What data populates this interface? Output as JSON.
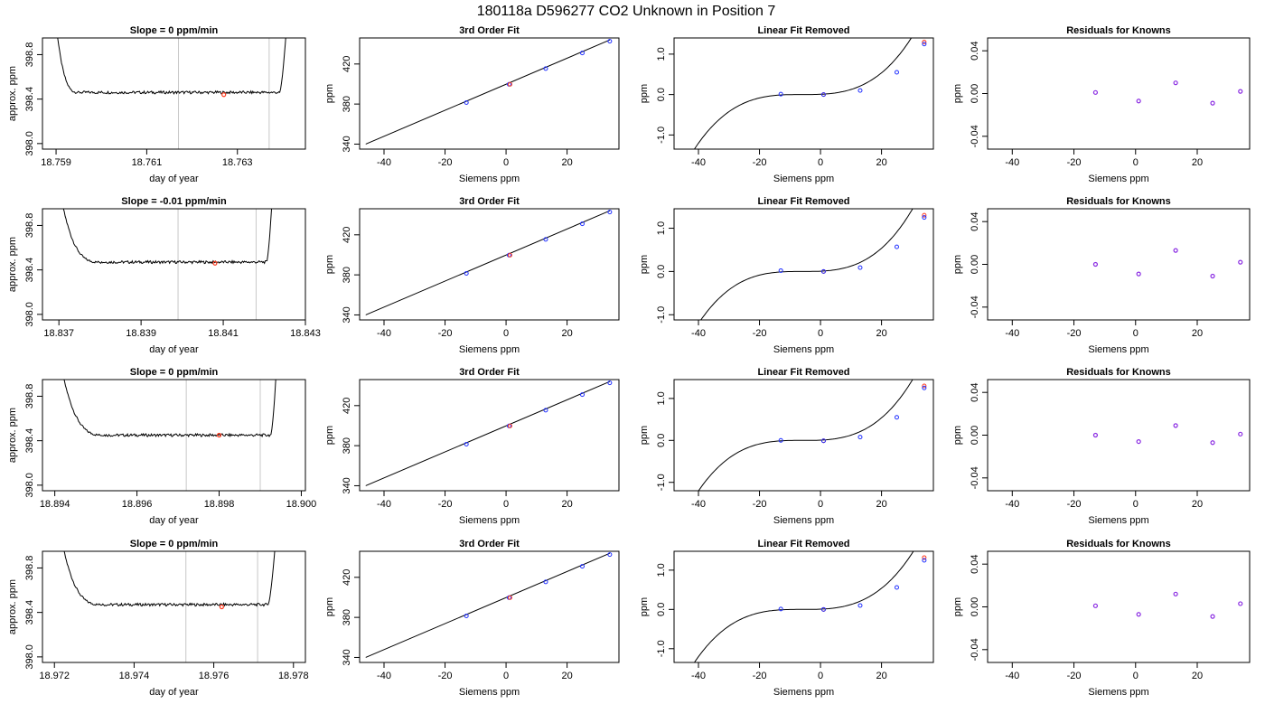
{
  "figure": {
    "title": "180118a      D596277    CO2 Unknown in Position  7"
  },
  "colors": {
    "trace": "#000000",
    "marker_red": "#ff3b1f",
    "marker_blue": "#1f2fff",
    "marker_purple": "#8a2be2",
    "vline": "#c8c8c8"
  },
  "chart_data": [
    {
      "type": "line",
      "panel": "timeseries",
      "row": 0,
      "title": "Slope =  0  ppm/min",
      "xlabel": "day of year",
      "ylabel": "approx. ppm",
      "xlim": [
        18.7587,
        18.7645
      ],
      "ylim": [
        397.95,
        398.95
      ],
      "xticks": [
        "18.759",
        "18.761",
        "18.763"
      ],
      "xtick_values": [
        18.759,
        18.761,
        18.763
      ],
      "yticks": [
        "398.0",
        "398.4",
        "398.8"
      ],
      "ytick_values": [
        398.0,
        398.4,
        398.8
      ],
      "vlines": [
        18.7617,
        18.7637
      ],
      "marker": {
        "x": 18.7627,
        "y": 398.44
      },
      "baseline": 398.46,
      "rise_start": 18.7595,
      "rise_end": 18.7637,
      "end": 18.7642
    },
    {
      "type": "line",
      "panel": "timeseries",
      "row": 1,
      "title": "Slope =  -0.01  ppm/min",
      "xlabel": "day of year",
      "ylabel": "approx. ppm",
      "xlim": [
        18.8366,
        18.843
      ],
      "ylim": [
        397.95,
        398.95
      ],
      "xticks": [
        "18.837",
        "18.839",
        "18.841",
        "18.843"
      ],
      "xtick_values": [
        18.837,
        18.839,
        18.841,
        18.843
      ],
      "yticks": [
        "398.0",
        "398.4",
        "398.8"
      ],
      "ytick_values": [
        398.0,
        398.4,
        398.8
      ],
      "vlines": [
        18.8399,
        18.8418
      ],
      "marker": {
        "x": 18.8408,
        "y": 398.46
      },
      "baseline": 398.47,
      "rise_start": 18.838,
      "rise_end": 18.8418,
      "end": 18.8423
    },
    {
      "type": "line",
      "panel": "timeseries",
      "row": 2,
      "title": "Slope =  0  ppm/min",
      "xlabel": "day of year",
      "ylabel": "approx. ppm",
      "xlim": [
        18.8937,
        18.9001
      ],
      "ylim": [
        397.95,
        398.95
      ],
      "xticks": [
        "18.894",
        "18.896",
        "18.898",
        "18.900"
      ],
      "xtick_values": [
        18.894,
        18.896,
        18.898,
        18.9
      ],
      "yticks": [
        "398.0",
        "398.4",
        "398.8"
      ],
      "ytick_values": [
        398.0,
        398.4,
        398.8
      ],
      "vlines": [
        18.8972,
        18.899
      ],
      "marker": {
        "x": 18.898,
        "y": 398.45
      },
      "baseline": 398.45,
      "rise_start": 18.8952,
      "rise_end": 18.899,
      "end": 18.8995
    },
    {
      "type": "line",
      "panel": "timeseries",
      "row": 3,
      "title": "Slope =  0  ppm/min",
      "xlabel": "day of year",
      "ylabel": "approx. ppm",
      "xlim": [
        18.9717,
        18.9783
      ],
      "ylim": [
        397.95,
        398.95
      ],
      "xticks": [
        "18.972",
        "18.974",
        "18.976",
        "18.978"
      ],
      "xtick_values": [
        18.972,
        18.974,
        18.976,
        18.978
      ],
      "yticks": [
        "398.0",
        "398.4",
        "398.8"
      ],
      "ytick_values": [
        398.0,
        398.4,
        398.8
      ],
      "vlines": [
        18.9753,
        18.9771
      ],
      "marker": {
        "x": 18.9762,
        "y": 398.45
      },
      "baseline": 398.47,
      "rise_start": 18.9732,
      "rise_end": 18.9771,
      "end": 18.9777
    },
    {
      "type": "scatter",
      "panel": "fit3",
      "row": 0,
      "title": "3rd Order Fit",
      "xlabel": "Siemens ppm",
      "ylabel": "ppm",
      "xlim": [
        -48,
        37
      ],
      "ylim": [
        335,
        446
      ],
      "xticks": [
        "-40",
        "-20",
        "0",
        "20"
      ],
      "xtick_values": [
        -40,
        -20,
        0,
        20
      ],
      "yticks": [
        "340",
        "380",
        "420"
      ],
      "ytick_values": [
        340,
        380,
        420
      ],
      "line": [
        [
          -46,
          340.0
        ],
        [
          34,
          444.0
        ]
      ],
      "points_blue": [
        [
          -13,
          381.5
        ],
        [
          1,
          399.7
        ],
        [
          13,
          415.4
        ],
        [
          25,
          431.0
        ],
        [
          34,
          442.7
        ]
      ],
      "points_red": [
        [
          1,
          399.7
        ]
      ]
    },
    {
      "type": "scatter",
      "panel": "fit3",
      "row": 1,
      "title": "3rd Order Fit",
      "xlabel": "Siemens ppm",
      "ylabel": "ppm",
      "xlim": [
        -48,
        37
      ],
      "ylim": [
        335,
        446
      ],
      "xticks": [
        "-40",
        "-20",
        "0",
        "20"
      ],
      "xtick_values": [
        -40,
        -20,
        0,
        20
      ],
      "yticks": [
        "340",
        "380",
        "420"
      ],
      "ytick_values": [
        340,
        380,
        420
      ],
      "line": [
        [
          -46,
          340.0
        ],
        [
          34,
          444.0
        ]
      ],
      "points_blue": [
        [
          -13,
          381.5
        ],
        [
          1,
          399.7
        ],
        [
          13,
          415.4
        ],
        [
          25,
          431.0
        ],
        [
          34,
          442.7
        ]
      ],
      "points_red": [
        [
          1,
          399.7
        ]
      ]
    },
    {
      "type": "scatter",
      "panel": "fit3",
      "row": 2,
      "title": "3rd Order Fit",
      "xlabel": "Siemens ppm",
      "ylabel": "ppm",
      "xlim": [
        -48,
        37
      ],
      "ylim": [
        335,
        446
      ],
      "xticks": [
        "-40",
        "-20",
        "0",
        "20"
      ],
      "xtick_values": [
        -40,
        -20,
        0,
        20
      ],
      "yticks": [
        "340",
        "380",
        "420"
      ],
      "ytick_values": [
        340,
        380,
        420
      ],
      "line": [
        [
          -46,
          340.0
        ],
        [
          34,
          444.0
        ]
      ],
      "points_blue": [
        [
          -13,
          381.5
        ],
        [
          1,
          399.7
        ],
        [
          13,
          415.4
        ],
        [
          25,
          431.0
        ],
        [
          34,
          442.7
        ]
      ],
      "points_red": [
        [
          1,
          399.7
        ]
      ]
    },
    {
      "type": "scatter",
      "panel": "fit3",
      "row": 3,
      "title": "3rd Order Fit",
      "xlabel": "Siemens ppm",
      "ylabel": "ppm",
      "xlim": [
        -48,
        37
      ],
      "ylim": [
        335,
        446
      ],
      "xticks": [
        "-40",
        "-20",
        "0",
        "20"
      ],
      "xtick_values": [
        -40,
        -20,
        0,
        20
      ],
      "yticks": [
        "340",
        "380",
        "420"
      ],
      "ytick_values": [
        340,
        380,
        420
      ],
      "line": [
        [
          -46,
          340.0
        ],
        [
          34,
          444.0
        ]
      ],
      "points_blue": [
        [
          -13,
          381.5
        ],
        [
          1,
          399.7
        ],
        [
          13,
          415.4
        ],
        [
          25,
          431.0
        ],
        [
          34,
          442.7
        ]
      ],
      "points_red": [
        [
          1,
          399.7
        ]
      ]
    },
    {
      "type": "scatter",
      "panel": "linrem",
      "row": 0,
      "title": "Linear Fit Removed",
      "xlabel": "Siemens ppm",
      "ylabel": "ppm",
      "xlim": [
        -48,
        37
      ],
      "ylim": [
        -1.35,
        1.4
      ],
      "xticks": [
        "-40",
        "-20",
        "0",
        "20"
      ],
      "xtick_values": [
        -40,
        -20,
        0,
        20
      ],
      "yticks": [
        "-1.0",
        "0.0",
        "1.0"
      ],
      "ytick_values": [
        -1.0,
        0.0,
        1.0
      ],
      "curve": {
        "k": 3.06e-05,
        "c": -6,
        "x0": -46,
        "x1": 34
      },
      "points_blue": [
        [
          -13,
          0.01
        ],
        [
          1,
          0.0
        ],
        [
          13,
          0.1
        ],
        [
          25,
          0.55
        ],
        [
          34,
          1.25
        ]
      ],
      "points_red": [
        [
          1,
          0.0
        ],
        [
          34,
          1.3
        ]
      ]
    },
    {
      "type": "scatter",
      "panel": "linrem",
      "row": 1,
      "title": "Linear Fit Removed",
      "xlabel": "Siemens ppm",
      "ylabel": "ppm",
      "xlim": [
        -48,
        37
      ],
      "ylim": [
        -1.12,
        1.45
      ],
      "xticks": [
        "-40",
        "-20",
        "0",
        "20"
      ],
      "xtick_values": [
        -40,
        -20,
        0,
        20
      ],
      "yticks": [
        "-1.0",
        "0.0",
        "1.0"
      ],
      "ytick_values": [
        -1.0,
        0.0,
        1.0
      ],
      "curve": {
        "k": 3.06e-05,
        "c": -6,
        "x0": -46,
        "x1": 34
      },
      "points_blue": [
        [
          -13,
          0.02
        ],
        [
          1,
          0.0
        ],
        [
          13,
          0.09
        ],
        [
          25,
          0.57
        ],
        [
          34,
          1.25
        ]
      ],
      "points_red": [
        [
          1,
          0.0
        ],
        [
          34,
          1.3
        ]
      ]
    },
    {
      "type": "scatter",
      "panel": "linrem",
      "row": 2,
      "title": "Linear Fit Removed",
      "xlabel": "Siemens ppm",
      "ylabel": "ppm",
      "xlim": [
        -48,
        37
      ],
      "ylim": [
        -1.2,
        1.45
      ],
      "xticks": [
        "-40",
        "-20",
        "0",
        "20"
      ],
      "xtick_values": [
        -40,
        -20,
        0,
        20
      ],
      "yticks": [
        "-1.0",
        "0.0",
        "1.0"
      ],
      "ytick_values": [
        -1.0,
        0.0,
        1.0
      ],
      "curve": {
        "k": 3.06e-05,
        "c": -6,
        "x0": -46,
        "x1": 34
      },
      "points_blue": [
        [
          -13,
          0.0
        ],
        [
          1,
          -0.01
        ],
        [
          13,
          0.08
        ],
        [
          25,
          0.55
        ],
        [
          34,
          1.25
        ]
      ],
      "points_red": [
        [
          1,
          -0.01
        ],
        [
          34,
          1.3
        ]
      ]
    },
    {
      "type": "scatter",
      "panel": "linrem",
      "row": 3,
      "title": "Linear Fit Removed",
      "xlabel": "Siemens ppm",
      "ylabel": "ppm",
      "xlim": [
        -48,
        37
      ],
      "ylim": [
        -1.35,
        1.48
      ],
      "xticks": [
        "-40",
        "-20",
        "0",
        "20"
      ],
      "xtick_values": [
        -40,
        -20,
        0,
        20
      ],
      "yticks": [
        "-1.0",
        "0.0",
        "1.0"
      ],
      "ytick_values": [
        -1.0,
        0.0,
        1.0
      ],
      "curve": {
        "k": 3.06e-05,
        "c": -6,
        "x0": -46,
        "x1": 34
      },
      "points_blue": [
        [
          -13,
          0.01
        ],
        [
          1,
          0.0
        ],
        [
          13,
          0.1
        ],
        [
          25,
          0.56
        ],
        [
          34,
          1.25
        ]
      ],
      "points_red": [
        [
          1,
          0.0
        ],
        [
          34,
          1.32
        ]
      ]
    },
    {
      "type": "scatter",
      "panel": "resid",
      "row": 0,
      "title": "Residuals for Knowns",
      "xlabel": "Siemens ppm",
      "ylabel": "ppm",
      "xlim": [
        -48,
        37
      ],
      "ylim": [
        -0.052,
        0.052
      ],
      "xticks": [
        "-40",
        "-20",
        "0",
        "20"
      ],
      "xtick_values": [
        -40,
        -20,
        0,
        20
      ],
      "yticks": [
        "-0.04",
        "0.00",
        "0.04"
      ],
      "ytick_values": [
        -0.04,
        0.0,
        0.04
      ],
      "points": [
        [
          -13,
          0.001
        ],
        [
          1,
          -0.007
        ],
        [
          13,
          0.01
        ],
        [
          25,
          -0.009
        ],
        [
          34,
          0.002
        ]
      ]
    },
    {
      "type": "scatter",
      "panel": "resid",
      "row": 1,
      "title": "Residuals for Knowns",
      "xlabel": "Siemens ppm",
      "ylabel": "ppm",
      "xlim": [
        -48,
        37
      ],
      "ylim": [
        -0.052,
        0.052
      ],
      "xticks": [
        "-40",
        "-20",
        "0",
        "20"
      ],
      "xtick_values": [
        -40,
        -20,
        0,
        20
      ],
      "yticks": [
        "-0.04",
        "0.00",
        "0.04"
      ],
      "ytick_values": [
        -0.04,
        0.0,
        0.04
      ],
      "points": [
        [
          -13,
          0.0
        ],
        [
          1,
          -0.009
        ],
        [
          13,
          0.013
        ],
        [
          25,
          -0.011
        ],
        [
          34,
          0.002
        ]
      ]
    },
    {
      "type": "scatter",
      "panel": "resid",
      "row": 2,
      "title": "Residuals for Knowns",
      "xlabel": "Siemens ppm",
      "ylabel": "ppm",
      "xlim": [
        -48,
        37
      ],
      "ylim": [
        -0.052,
        0.052
      ],
      "xticks": [
        "-40",
        "-20",
        "0",
        "20"
      ],
      "xtick_values": [
        -40,
        -20,
        0,
        20
      ],
      "yticks": [
        "-0.04",
        "0.00",
        "0.04"
      ],
      "ytick_values": [
        -0.04,
        0.0,
        0.04
      ],
      "points": [
        [
          -13,
          0.0
        ],
        [
          1,
          -0.006
        ],
        [
          13,
          0.009
        ],
        [
          25,
          -0.007
        ],
        [
          34,
          0.001
        ]
      ]
    },
    {
      "type": "scatter",
      "panel": "resid",
      "row": 3,
      "title": "Residuals for Knowns",
      "xlabel": "Siemens ppm",
      "ylabel": "ppm",
      "xlim": [
        -48,
        37
      ],
      "ylim": [
        -0.052,
        0.052
      ],
      "xticks": [
        "-40",
        "-20",
        "0",
        "20"
      ],
      "xtick_values": [
        -40,
        -20,
        0,
        20
      ],
      "yticks": [
        "-0.04",
        "0.00",
        "0.04"
      ],
      "ytick_values": [
        -0.04,
        0.0,
        0.04
      ],
      "points": [
        [
          -13,
          0.001
        ],
        [
          1,
          -0.007
        ],
        [
          13,
          0.012
        ],
        [
          25,
          -0.009
        ],
        [
          34,
          0.003
        ]
      ]
    }
  ]
}
